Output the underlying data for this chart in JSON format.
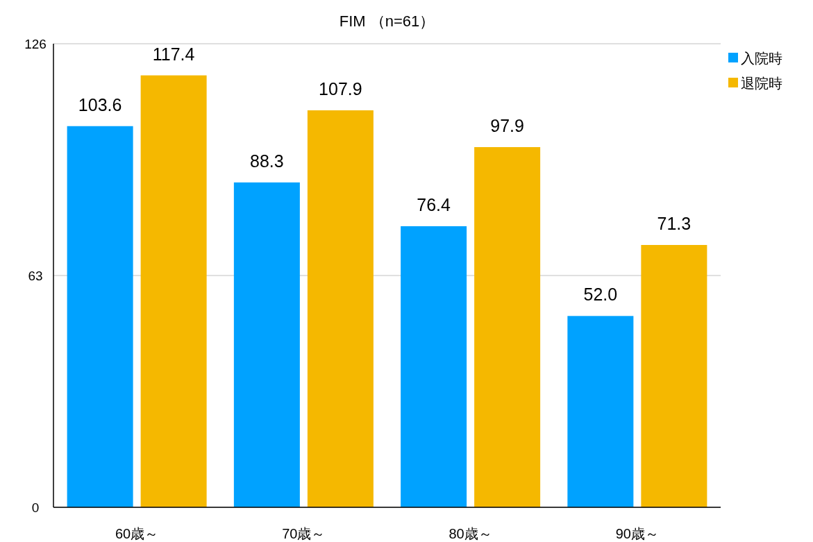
{
  "chart_data": {
    "type": "bar",
    "title": "FIM （n=61）",
    "categories": [
      "60歳～",
      "70歳～",
      "80歳～",
      "90歳～"
    ],
    "series": [
      {
        "name": "入院時",
        "color": "#00a2ff",
        "values": [
          103.6,
          88.3,
          76.4,
          52.0
        ],
        "value_labels": [
          "103.6",
          "88.3",
          "76.4",
          "52.0"
        ]
      },
      {
        "name": "退院時",
        "color": "#f5b800",
        "values": [
          117.4,
          107.9,
          97.9,
          71.3
        ],
        "value_labels": [
          "117.4",
          "107.9",
          "97.9",
          "71.3"
        ]
      }
    ],
    "ylim": [
      0,
      126
    ],
    "yticks": [
      0,
      63,
      126
    ],
    "grid": "y",
    "legend": "top right"
  }
}
